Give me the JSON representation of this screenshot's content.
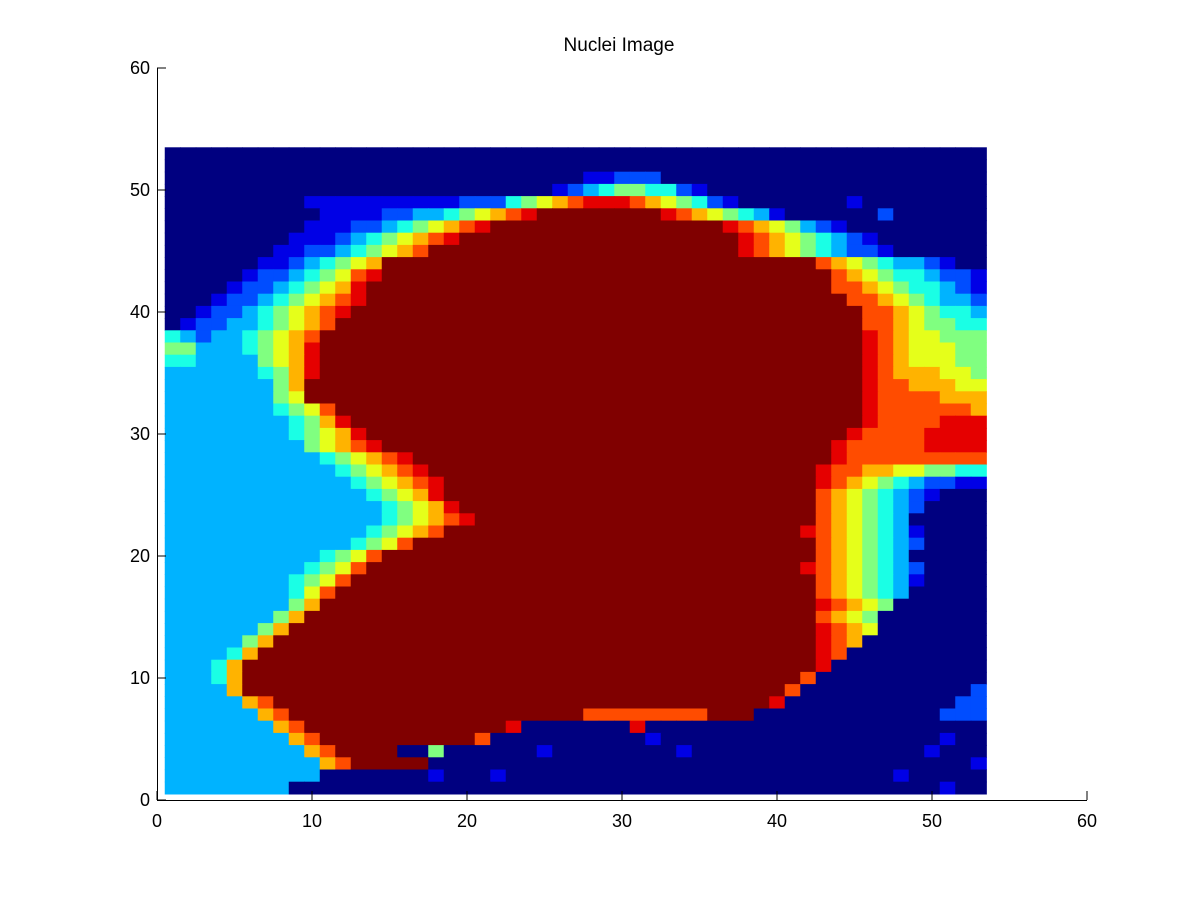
{
  "chart_data": {
    "type": "heatmap",
    "title": "Nuclei Image",
    "xlabel": "",
    "ylabel": "",
    "xlim": [
      0,
      60
    ],
    "ylim": [
      0,
      60
    ],
    "xticks": [
      0,
      10,
      20,
      30,
      40,
      50,
      60
    ],
    "yticks": [
      0,
      10,
      20,
      30,
      40,
      50,
      60
    ],
    "grid": false,
    "colormap": "jet",
    "clim": [
      0,
      1
    ],
    "image_extent": {
      "x": [
        0.5,
        53.5
      ],
      "y": [
        0.5,
        53.5
      ]
    },
    "grid_size": [
      53,
      53
    ],
    "rows_order": "top-to-bottom (row 1 at y=53)",
    "legend_code": {
      ".": 0.0,
      "1": 0.1,
      "2": 0.2,
      "3": 0.3,
      "4": 0.4,
      "5": 0.5,
      "6": 0.6,
      "7": 0.7,
      "8": 0.8,
      "9": 0.9,
      "#": 1.0
    },
    "rows": [
      ".....................................................",
      "......................................................",
      "...........................11222.......................",
      ".........................1234554421..................",
      ".........1111111111222456789998765421.......1.........",
      "..........11112233456789########98765431......2.......",
      ".........111223456789###############98765321..........",
      "........11123456789##################987654321........",
      ".......1122345678####################9876543221.......",
      "......11234567############################876543321....",
      ".....122345689#############################8765443221...",
      "....122345679##############################88765443211..",
      "...1223456789###############################887654332211",
      "..1223456789#################################88765443321",
      ".1223345678##################################88765544432",
      "4323345678###################################98766555432",
      "5533345679###################################98766655442",
      "4433335679###################################98766655543",
      "3333334579###################################98777665554",
      "333333357####################################98877766655",
      "333333356####################################98888777666",
      "33333334568##################################98888887777",
      "333333334579#################################988889998888",
      "3333333345679###############################9888899999998",
      "33333333356789#############################98888899999988",
      "3333333333456789###########################98888888888776",
      "33333333333456789#########################988776655443322",
      "333333333333456789########################9876543221111..",
      "333333333333345679########################87654321.......",
      "3333333333333345679#######################8765432........",
      "33333333333333456789######################876543.........",
      "333333333333345678#######################98765431........",
      "3333333333334568##########################8765432........",
      "33333333334568############################876543.........",
      "3333333334568############################98765432.........",
      "333333334568##############################8765431.........",
      "33333333468###############################876543..........",
      "3333333357################################98765..........",
      "333333357#################################8765...........",
      "33333357##################################9876...........",
      "3333357###################################987............",
      "333347####################################98.............",
      "33347#####################################9..............",
      "33347####################################8...........1...",
      "33337###################################8...........2...",
      "3333378################################9...........22...",
      "33333378###################88888888###............222...",
      "333333378#############9.......9.......................2..",
      "3333333378##########8..........1..................1....2.",
      "33333333378####..5......1........1...............1.....1.",
      "333333333378#####...................................1...1",
      "3333333333.......1...1.........................1.......7.",
      "33333333..........................................1....9"
    ]
  }
}
